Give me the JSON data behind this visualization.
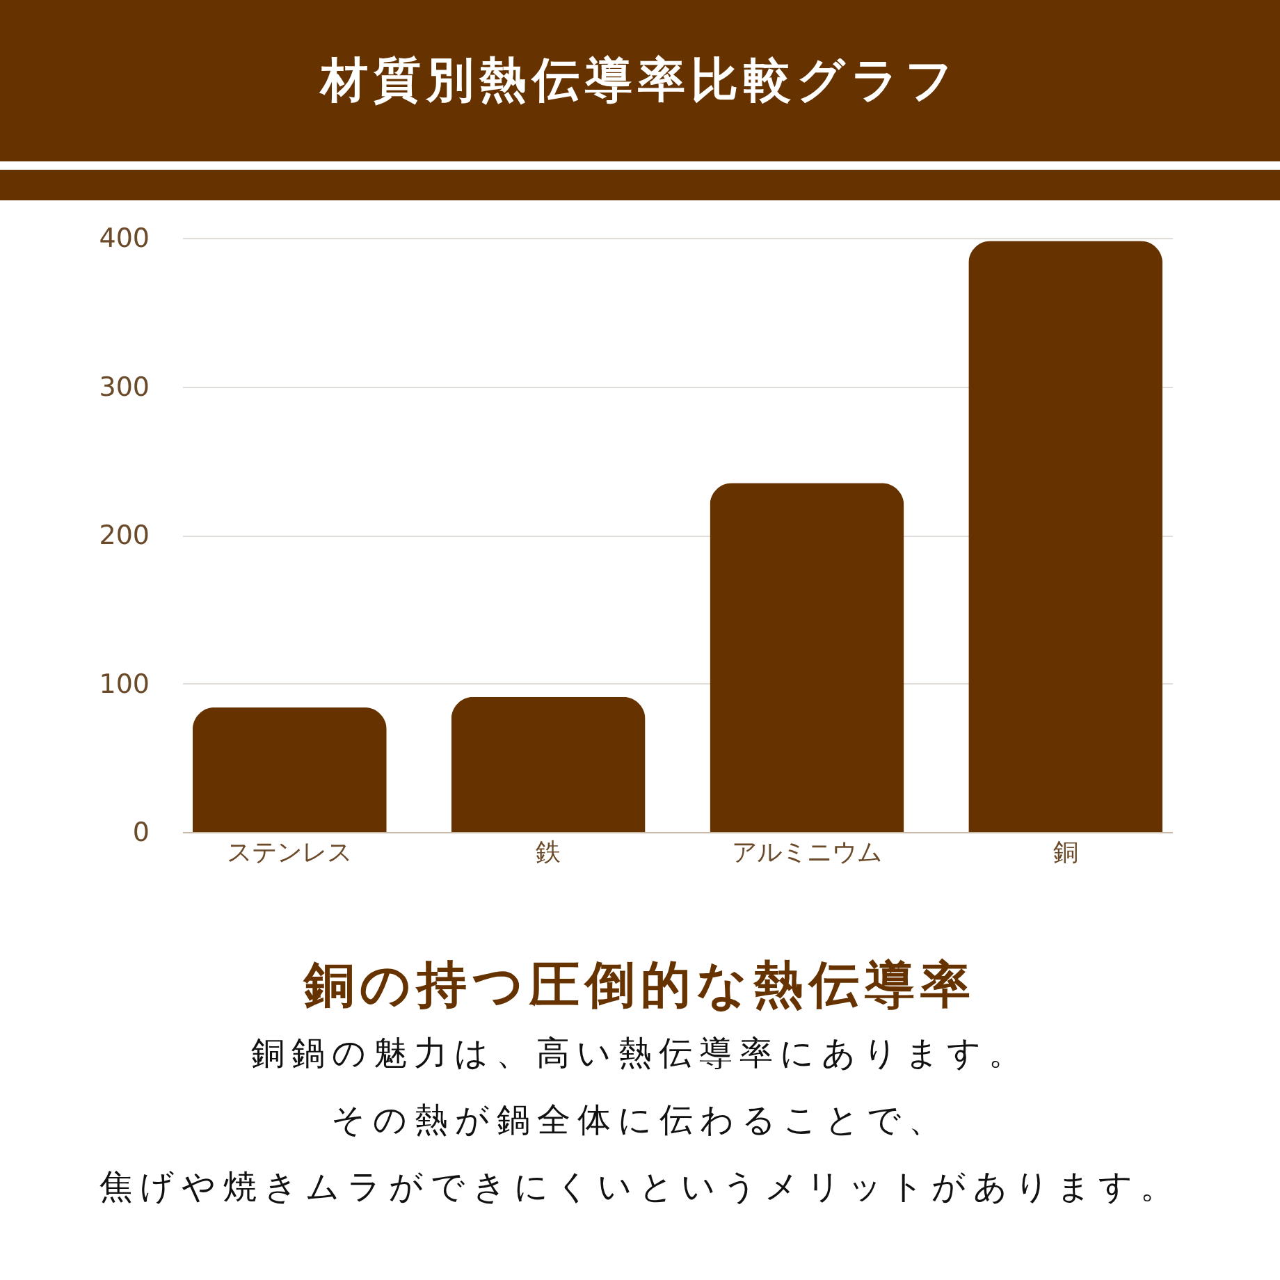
{
  "chart_data": {
    "type": "bar",
    "title": "材質別熱伝導率比較グラフ",
    "subtitle": "銅の持つ圧倒的な熱伝導率",
    "annotations": [
      "銅鍋の魅力は、高い熱伝導率にあります。",
      "その熱が鍋全体に伝わることで、",
      "焦げや焼きムラができにくいというメリットがあります。"
    ],
    "categories": [
      "ステンレス",
      "鉄",
      "アルミニウム",
      "銅"
    ],
    "values": [
      84,
      91,
      235,
      398
    ],
    "color": "#663300",
    "ylim": [
      0,
      400
    ],
    "yticks": [
      0,
      100,
      200,
      300,
      400
    ],
    "grid": "y"
  }
}
